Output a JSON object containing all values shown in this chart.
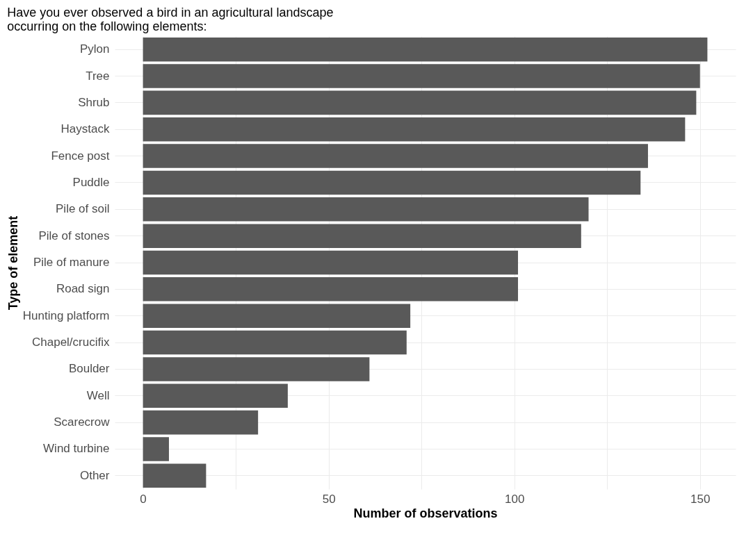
{
  "chart_data": {
    "type": "bar",
    "orientation": "horizontal",
    "title": [
      "Have you ever observed a bird in an agricultural landscape",
      "occurring on the following elements:"
    ],
    "xlabel": "Number of observations",
    "ylabel": "Type of element",
    "categories": [
      "Pylon",
      "Tree",
      "Shrub",
      "Haystack",
      "Fence post",
      "Puddle",
      "Pile of soil",
      "Pile of stones",
      "Pile of manure",
      "Road sign",
      "Hunting platform",
      "Chapel/crucifix",
      "Boulder",
      "Well",
      "Scarecrow",
      "Wind turbine",
      "Other"
    ],
    "values": [
      152,
      150,
      149,
      146,
      136,
      134,
      120,
      118,
      101,
      101,
      72,
      71,
      61,
      39,
      31,
      7,
      17
    ],
    "color": "#595959",
    "xlim": [
      -7.6,
      159.6
    ],
    "xticks": [
      0,
      {
        "value": 25,
        "label": null
      },
      50,
      {
        "value": 75,
        "label": null
      },
      100,
      {
        "value": 125,
        "label": null
      },
      150
    ],
    "grid": true
  }
}
